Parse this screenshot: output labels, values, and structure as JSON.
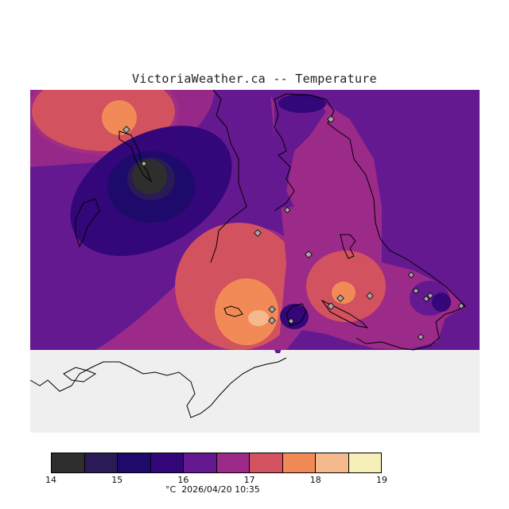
{
  "title": "VictoriaWeather.ca -- Temperature",
  "legend": {
    "colors": [
      "#2e2e2e",
      "#2a1a55",
      "#1e0a6a",
      "#33077a",
      "#651990",
      "#9b2a88",
      "#d2525f",
      "#f28a58",
      "#f4b98c",
      "#f6efb8"
    ],
    "ticks": [
      "14",
      "15",
      "16",
      "17",
      "18",
      "19"
    ]
  },
  "footer": {
    "unit": "°C",
    "timestamp": "2026/04/20 10:35"
  },
  "map": {
    "background_color": "#efefef",
    "land_outline_color": "#000000",
    "station_marker_color": "#a8a8a8"
  }
}
